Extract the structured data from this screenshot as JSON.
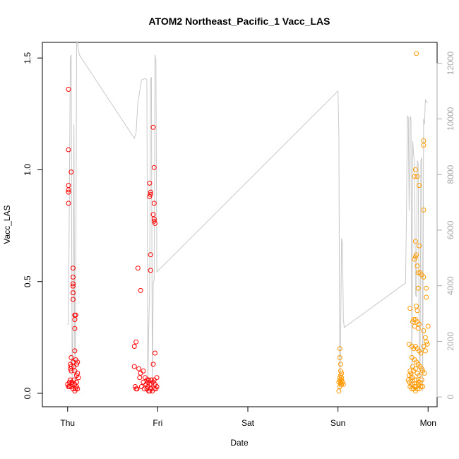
{
  "chart_data": {
    "type": "scatter",
    "title": "ATOM2 Northeast_Pacific_1 Vacc_LAS",
    "xlabel": "Date",
    "ylabel": "Vacc_LAS",
    "x_tick_labels": [
      "Thu",
      "Fri",
      "Sat",
      "Sun",
      "Mon"
    ],
    "x_tick_positions_days": [
      0,
      1,
      2,
      3,
      4
    ],
    "xlim": [
      -0.28,
      4.1
    ],
    "ylim": [
      -0.06,
      1.57
    ],
    "y_ticks": [
      0.0,
      0.5,
      1.0,
      1.5
    ],
    "y_tick_labels": [
      "0.0",
      "0.5",
      "1.0",
      "1.5"
    ],
    "y2_label": "",
    "y2lim": [
      -350,
      12750
    ],
    "y2_ticks": [
      0,
      2000,
      4000,
      6000,
      8000,
      10000,
      12000
    ],
    "y2_tick_labels": [
      "0",
      "2000",
      "4000",
      "6000",
      "8000",
      "10000",
      "12000"
    ],
    "grid": false,
    "colors": {
      "series_red": "#ff0000",
      "series_orange": "#ff9900",
      "line_gray": "#c8c8c8",
      "axis": "#000000",
      "right_axis": "#aaaaaa"
    },
    "series": [
      {
        "color": "#ff0000",
        "points": [
          [
            0.01,
            1.36
          ],
          [
            0.01,
            1.09
          ],
          [
            0.01,
            0.93
          ],
          [
            0.01,
            0.91
          ],
          [
            0.01,
            0.9
          ],
          [
            0.01,
            0.85
          ],
          [
            0.04,
            0.99
          ],
          [
            0.06,
            0.56
          ],
          [
            0.06,
            0.52
          ],
          [
            0.06,
            0.49
          ],
          [
            0.06,
            0.48
          ],
          [
            0.06,
            0.45
          ],
          [
            0.06,
            0.42
          ],
          [
            0.08,
            0.35
          ],
          [
            0.09,
            0.35
          ],
          [
            0.08,
            0.33
          ],
          [
            0.08,
            0.29
          ],
          [
            0.08,
            0.19
          ],
          [
            0.04,
            0.16
          ],
          [
            0.03,
            0.13
          ],
          [
            0.04,
            0.12
          ],
          [
            0.03,
            0.11
          ],
          [
            0.06,
            0.14
          ],
          [
            0.09,
            0.15
          ],
          [
            0.11,
            0.14
          ],
          [
            0.1,
            0.13
          ],
          [
            0.07,
            0.12
          ],
          [
            0.04,
            0.1
          ],
          [
            0.08,
            0.1
          ],
          [
            0.11,
            0.09
          ],
          [
            0.1,
            0.08
          ],
          [
            0.12,
            0.07
          ],
          [
            0.02,
            0.05
          ],
          [
            0.05,
            0.05
          ],
          [
            0.07,
            0.06
          ],
          [
            0.0,
            0.04
          ],
          [
            0.02,
            0.03
          ],
          [
            0.05,
            0.04
          ],
          [
            0.08,
            0.04
          ],
          [
            0.1,
            0.05
          ],
          [
            0.01,
            0.03
          ],
          [
            0.04,
            0.03
          ],
          [
            0.06,
            0.02
          ],
          [
            0.09,
            0.02
          ],
          [
            0.11,
            0.02
          ],
          [
            0.08,
            0.01
          ],
          [
            0.03,
            0.06
          ],
          [
            0.1,
            0.03
          ],
          [
            0.95,
            1.19
          ],
          [
            0.96,
            1.01
          ],
          [
            0.91,
            0.94
          ],
          [
            0.92,
            0.9
          ],
          [
            0.92,
            0.89
          ],
          [
            0.91,
            0.88
          ],
          [
            0.96,
            0.85
          ],
          [
            0.95,
            0.8
          ],
          [
            0.96,
            0.78
          ],
          [
            0.96,
            0.77
          ],
          [
            0.97,
            0.76
          ],
          [
            0.92,
            0.62
          ],
          [
            0.92,
            0.55
          ],
          [
            0.78,
            0.56
          ],
          [
            0.81,
            0.46
          ],
          [
            0.76,
            0.23
          ],
          [
            0.74,
            0.21
          ],
          [
            0.97,
            0.18
          ],
          [
            0.95,
            0.13
          ],
          [
            0.74,
            0.12
          ],
          [
            0.79,
            0.11
          ],
          [
            0.84,
            0.1
          ],
          [
            0.81,
            0.09
          ],
          [
            0.86,
            0.07
          ],
          [
            0.8,
            0.07
          ],
          [
            0.88,
            0.06
          ],
          [
            0.9,
            0.06
          ],
          [
            0.93,
            0.06
          ],
          [
            0.96,
            0.06
          ],
          [
            0.99,
            0.07
          ],
          [
            0.84,
            0.05
          ],
          [
            0.87,
            0.04
          ],
          [
            0.89,
            0.05
          ],
          [
            0.91,
            0.04
          ],
          [
            0.93,
            0.04
          ],
          [
            0.95,
            0.05
          ],
          [
            0.97,
            0.04
          ],
          [
            0.99,
            0.03
          ],
          [
            0.75,
            0.03
          ],
          [
            0.77,
            0.02
          ],
          [
            0.82,
            0.03
          ],
          [
            0.85,
            0.02
          ],
          [
            0.88,
            0.02
          ],
          [
            0.9,
            0.01
          ],
          [
            0.92,
            0.02
          ],
          [
            0.94,
            0.01
          ],
          [
            0.96,
            0.02
          ],
          [
            0.98,
            0.02
          ],
          [
            0.89,
            0.03
          ],
          [
            0.76,
            0.02
          ],
          [
            0.91,
            0.01
          ]
        ]
      },
      {
        "color": "#ff9900",
        "points": [
          [
            3.02,
            0.2
          ],
          [
            3.02,
            0.16
          ],
          [
            3.03,
            0.13
          ],
          [
            3.03,
            0.1
          ],
          [
            3.04,
            0.09
          ],
          [
            3.03,
            0.08
          ],
          [
            3.04,
            0.07
          ],
          [
            3.02,
            0.07
          ],
          [
            3.04,
            0.06
          ],
          [
            3.02,
            0.06
          ],
          [
            3.03,
            0.05
          ],
          [
            3.05,
            0.05
          ],
          [
            3.01,
            0.05
          ],
          [
            3.03,
            0.04
          ],
          [
            3.04,
            0.04
          ],
          [
            3.06,
            0.04
          ],
          [
            3.02,
            0.03
          ],
          [
            3.01,
            0.01
          ],
          [
            3.87,
            1.52
          ],
          [
            3.86,
            1.0
          ],
          [
            3.88,
            0.97
          ],
          [
            3.9,
            0.93
          ],
          [
            3.95,
            1.13
          ],
          [
            3.95,
            1.11
          ],
          [
            3.95,
            0.82
          ],
          [
            3.85,
            0.97
          ],
          [
            3.86,
            0.68
          ],
          [
            3.9,
            0.66
          ],
          [
            3.87,
            0.62
          ],
          [
            3.86,
            0.61
          ],
          [
            3.85,
            0.6
          ],
          [
            3.88,
            0.57
          ],
          [
            3.89,
            0.54
          ],
          [
            3.91,
            0.54
          ],
          [
            3.93,
            0.53
          ],
          [
            3.95,
            0.52
          ],
          [
            3.89,
            0.47
          ],
          [
            3.98,
            0.47
          ],
          [
            3.98,
            0.43
          ],
          [
            3.87,
            0.39
          ],
          [
            3.88,
            0.37
          ],
          [
            3.8,
            0.38
          ],
          [
            3.84,
            0.33
          ],
          [
            3.86,
            0.33
          ],
          [
            3.88,
            0.32
          ],
          [
            3.83,
            0.32
          ],
          [
            3.9,
            0.31
          ],
          [
            3.85,
            0.3
          ],
          [
            3.89,
            0.29
          ],
          [
            3.95,
            0.28
          ],
          [
            3.97,
            0.25
          ],
          [
            3.98,
            0.23
          ],
          [
            3.99,
            0.22
          ],
          [
            4.0,
            0.3
          ],
          [
            3.79,
            0.22
          ],
          [
            3.82,
            0.21
          ],
          [
            3.84,
            0.2
          ],
          [
            3.86,
            0.21
          ],
          [
            3.88,
            0.2
          ],
          [
            3.9,
            0.19
          ],
          [
            3.92,
            0.18
          ],
          [
            3.95,
            0.21
          ],
          [
            3.97,
            0.19
          ],
          [
            3.82,
            0.16
          ],
          [
            3.85,
            0.15
          ],
          [
            3.87,
            0.14
          ],
          [
            3.89,
            0.13
          ],
          [
            3.91,
            0.12
          ],
          [
            3.93,
            0.11
          ],
          [
            3.83,
            0.12
          ],
          [
            3.86,
            0.11
          ],
          [
            3.8,
            0.1
          ],
          [
            3.84,
            0.1
          ],
          [
            3.88,
            0.09
          ],
          [
            3.9,
            0.08
          ],
          [
            3.94,
            0.1
          ],
          [
            3.96,
            0.09
          ],
          [
            3.79,
            0.08
          ],
          [
            3.81,
            0.07
          ],
          [
            3.83,
            0.07
          ],
          [
            3.85,
            0.06
          ],
          [
            3.87,
            0.06
          ],
          [
            3.89,
            0.05
          ],
          [
            3.91,
            0.05
          ],
          [
            3.93,
            0.06
          ],
          [
            3.79,
            0.05
          ],
          [
            3.81,
            0.04
          ],
          [
            3.83,
            0.04
          ],
          [
            3.85,
            0.03
          ],
          [
            3.87,
            0.03
          ],
          [
            3.89,
            0.04
          ],
          [
            3.92,
            0.03
          ],
          [
            3.8,
            0.03
          ],
          [
            3.82,
            0.02
          ],
          [
            3.84,
            0.02
          ],
          [
            3.86,
            0.01
          ],
          [
            3.88,
            0.02
          ],
          [
            3.9,
            0.02
          ],
          [
            3.94,
            0.03
          ],
          [
            3.78,
            0.06
          ],
          [
            3.81,
            0.09
          ]
        ]
      }
    ],
    "line_series": {
      "color": "#c8c8c8",
      "axis": "right",
      "points": [
        [
          0.0,
          2600
        ],
        [
          0.01,
          2650
        ],
        [
          0.03,
          12200
        ],
        [
          0.04,
          12300
        ],
        [
          0.05,
          400
        ],
        [
          0.06,
          2700
        ],
        [
          0.07,
          9800
        ],
        [
          0.08,
          600
        ],
        [
          0.09,
          2800
        ],
        [
          0.1,
          12800
        ],
        [
          0.11,
          12700
        ],
        [
          0.13,
          12300
        ],
        [
          0.74,
          9300
        ],
        [
          0.76,
          9500
        ],
        [
          0.78,
          10600
        ],
        [
          0.79,
          10800
        ],
        [
          0.82,
          11400
        ],
        [
          0.86,
          11450
        ],
        [
          0.88,
          11400
        ],
        [
          0.89,
          200
        ],
        [
          0.9,
          2500
        ],
        [
          0.91,
          3800
        ],
        [
          0.92,
          11400
        ],
        [
          0.93,
          11500
        ],
        [
          0.94,
          300
        ],
        [
          0.95,
          4100
        ],
        [
          0.96,
          4200
        ],
        [
          0.97,
          12300
        ],
        [
          0.98,
          12100
        ],
        [
          0.99,
          4500
        ],
        [
          3.0,
          11000
        ],
        [
          3.01,
          9500
        ],
        [
          3.02,
          200
        ],
        [
          3.03,
          2100
        ],
        [
          3.04,
          5700
        ],
        [
          3.05,
          5500
        ],
        [
          3.06,
          2800
        ],
        [
          3.07,
          2500
        ],
        [
          3.75,
          4100
        ],
        [
          3.76,
          6500
        ],
        [
          3.77,
          10100
        ],
        [
          3.78,
          10050
        ],
        [
          3.79,
          6700
        ],
        [
          3.8,
          10100
        ],
        [
          3.81,
          10000
        ],
        [
          3.82,
          200
        ],
        [
          3.83,
          9200
        ],
        [
          3.84,
          8700
        ],
        [
          3.85,
          8400
        ],
        [
          3.86,
          3700
        ],
        [
          3.87,
          3600
        ],
        [
          3.88,
          8500
        ],
        [
          3.89,
          8400
        ],
        [
          3.9,
          2300
        ],
        [
          3.91,
          300
        ],
        [
          3.92,
          8500
        ],
        [
          3.93,
          8600
        ],
        [
          3.94,
          200
        ],
        [
          3.95,
          10000
        ],
        [
          3.96,
          9800
        ],
        [
          3.97,
          10700
        ],
        [
          3.98,
          10600
        ],
        [
          4.0,
          10600
        ]
      ]
    }
  }
}
